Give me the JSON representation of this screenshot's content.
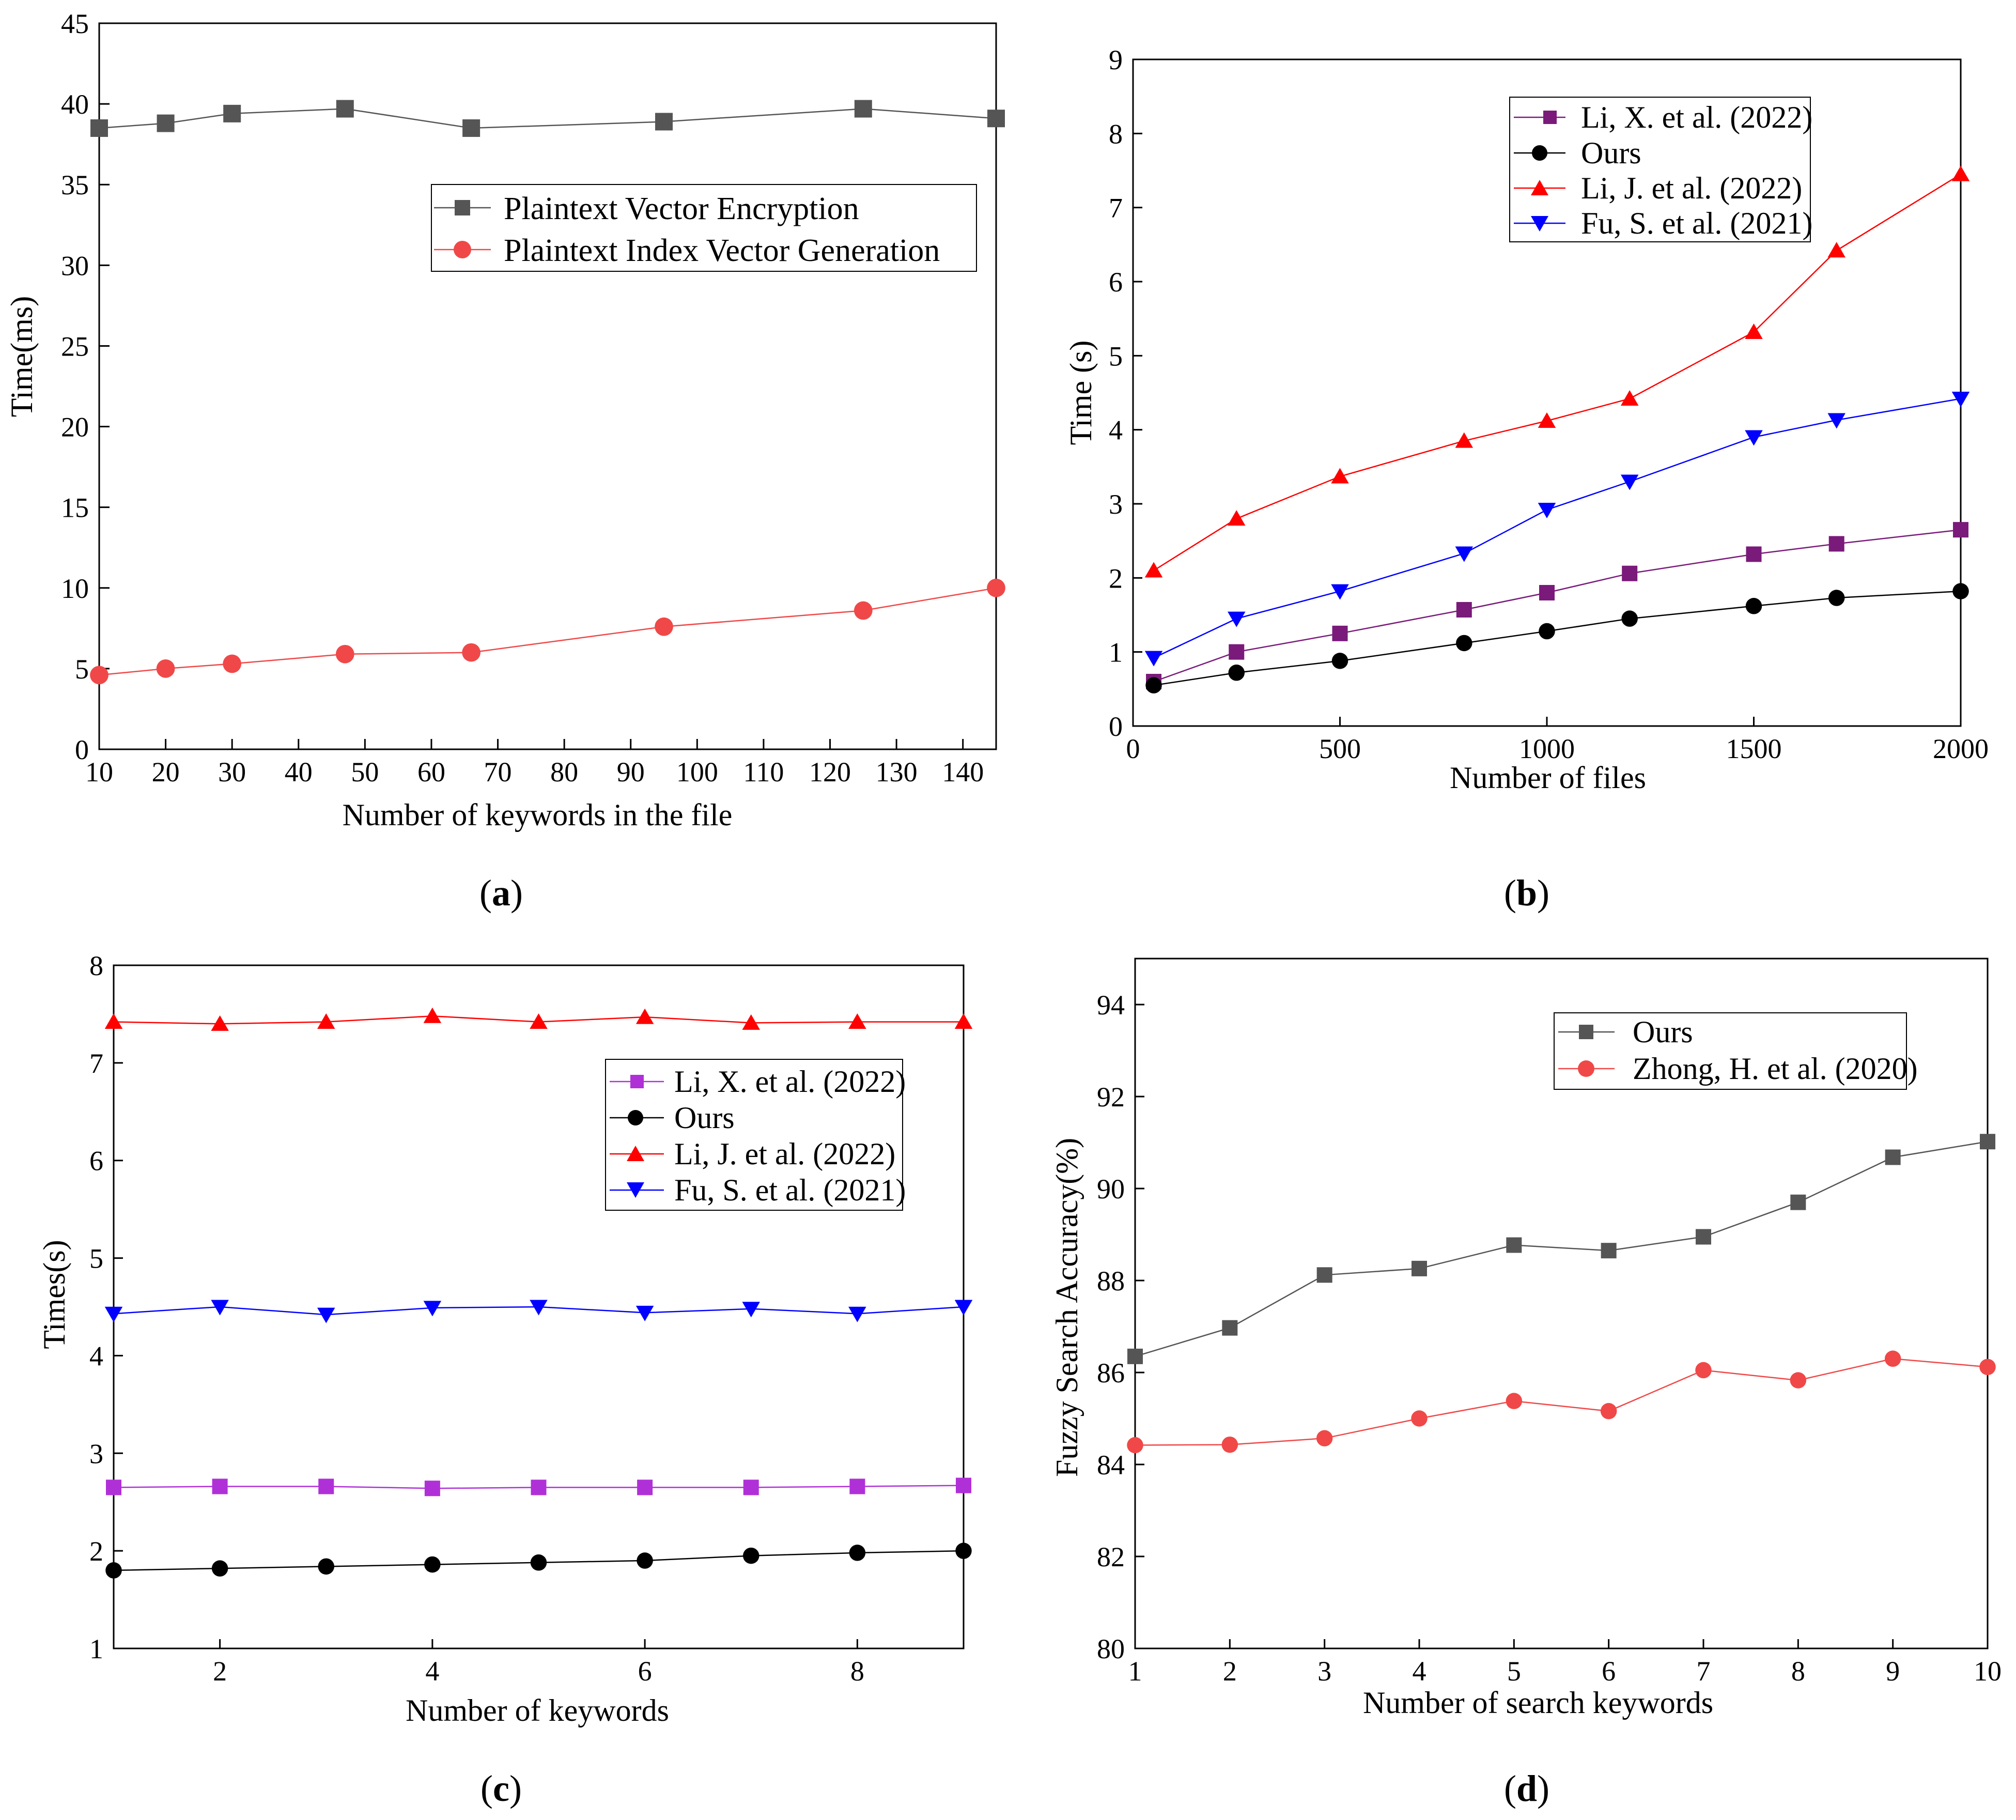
{
  "chart_data": [
    {
      "id": "a",
      "type": "line",
      "caption_letter": "a",
      "xlabel": "Number of keywords in the file",
      "ylabel": "Time(ms)",
      "xlim": [
        10,
        145
      ],
      "ylim": [
        0,
        45
      ],
      "xticks": [
        10,
        20,
        30,
        40,
        50,
        60,
        70,
        80,
        90,
        100,
        110,
        120,
        130,
        140
      ],
      "yticks": [
        0,
        5,
        10,
        15,
        20,
        25,
        30,
        35,
        40,
        45
      ],
      "legend_position": "top-right",
      "series": [
        {
          "name": "Plaintext Vector Encryption",
          "color": "#555555",
          "marker": "square",
          "x": [
            10,
            20,
            30,
            47,
            66,
            95,
            125,
            145
          ],
          "y": [
            38.5,
            38.8,
            39.4,
            39.7,
            38.5,
            38.9,
            39.7,
            39.1
          ]
        },
        {
          "name": "Plaintext Index Vector Generation",
          "color": "#f04848",
          "marker": "circle",
          "x": [
            10,
            20,
            30,
            47,
            66,
            95,
            125,
            145
          ],
          "y": [
            4.6,
            5.0,
            5.3,
            5.9,
            6.0,
            7.6,
            8.6,
            10.0
          ]
        }
      ]
    },
    {
      "id": "b",
      "type": "line",
      "caption_letter": "b",
      "xlabel": "Number of files",
      "ylabel": "Time (s)",
      "xlim": [
        0,
        2000
      ],
      "ylim": [
        0,
        9
      ],
      "xticks": [
        0,
        500,
        1000,
        1500,
        2000
      ],
      "yticks": [
        0,
        1,
        2,
        3,
        4,
        5,
        6,
        7,
        8,
        9
      ],
      "legend_position": "top-left",
      "series": [
        {
          "name": "Li, X. et al. (2022)",
          "color": "#7a1a7a",
          "marker": "square",
          "x": [
            50,
            250,
            500,
            800,
            1000,
            1200,
            1500,
            1700,
            2000
          ],
          "y": [
            0.6,
            1.0,
            1.25,
            1.57,
            1.8,
            2.06,
            2.32,
            2.46,
            2.65
          ]
        },
        {
          "name": "Ours",
          "color": "#000000",
          "marker": "circle",
          "x": [
            50,
            250,
            500,
            800,
            1000,
            1200,
            1500,
            1700,
            2000
          ],
          "y": [
            0.55,
            0.72,
            0.88,
            1.12,
            1.28,
            1.45,
            1.62,
            1.73,
            1.82
          ]
        },
        {
          "name": "Li, J. et al. (2022)",
          "color": "#ff0000",
          "marker": "triangle-up",
          "x": [
            50,
            250,
            500,
            800,
            1000,
            1200,
            1500,
            1700,
            2000
          ],
          "y": [
            2.1,
            2.8,
            3.37,
            3.85,
            4.12,
            4.42,
            5.32,
            6.42,
            7.45
          ]
        },
        {
          "name": "Fu, S. et al. (2021)",
          "color": "#0000ff",
          "marker": "triangle-down",
          "x": [
            50,
            250,
            500,
            800,
            1000,
            1200,
            1500,
            1700,
            2000
          ],
          "y": [
            0.92,
            1.45,
            1.82,
            2.33,
            2.92,
            3.3,
            3.9,
            4.13,
            4.42
          ]
        }
      ]
    },
    {
      "id": "c",
      "type": "line",
      "caption_letter": "c",
      "xlabel": "Number of keywords",
      "ylabel": "Times(s)",
      "xlim": [
        1,
        9
      ],
      "ylim": [
        1,
        8
      ],
      "xticks": [
        2,
        4,
        6,
        8
      ],
      "yticks": [
        1,
        2,
        3,
        4,
        5,
        6,
        7,
        8
      ],
      "legend_position": "right",
      "series": [
        {
          "name": "Li, X. et al. (2022)",
          "color": "#b030d8",
          "marker": "square",
          "x": [
            1,
            2,
            3,
            4,
            5,
            6,
            7,
            8,
            9
          ],
          "y": [
            2.65,
            2.66,
            2.66,
            2.64,
            2.65,
            2.65,
            2.65,
            2.66,
            2.67
          ]
        },
        {
          "name": "Ours",
          "color": "#000000",
          "marker": "circle",
          "x": [
            1,
            2,
            3,
            4,
            5,
            6,
            7,
            8,
            9
          ],
          "y": [
            1.8,
            1.82,
            1.84,
            1.86,
            1.88,
            1.9,
            1.95,
            1.98,
            2.0
          ]
        },
        {
          "name": "Li, J. et al. (2022)",
          "color": "#ff0000",
          "marker": "triangle-up",
          "x": [
            1,
            2,
            3,
            4,
            5,
            6,
            7,
            8,
            9
          ],
          "y": [
            7.42,
            7.4,
            7.42,
            7.48,
            7.42,
            7.47,
            7.41,
            7.42,
            7.42
          ]
        },
        {
          "name": "Fu, S. et al. (2021)",
          "color": "#0000ff",
          "marker": "triangle-down",
          "x": [
            1,
            2,
            3,
            4,
            5,
            6,
            7,
            8,
            9
          ],
          "y": [
            4.43,
            4.5,
            4.42,
            4.49,
            4.5,
            4.44,
            4.48,
            4.43,
            4.5
          ]
        }
      ]
    },
    {
      "id": "d",
      "type": "line",
      "caption_letter": "d",
      "xlabel": "Number of search keywords",
      "ylabel": "Fuzzy Search Accuracy(%)",
      "xlim": [
        1,
        10
      ],
      "ylim": [
        80,
        95
      ],
      "xticks": [
        1,
        2,
        3,
        4,
        5,
        6,
        7,
        8,
        9,
        10
      ],
      "yticks": [
        80,
        82,
        84,
        86,
        88,
        90,
        92,
        94
      ],
      "legend_position": "top-right",
      "series": [
        {
          "name": "Ours",
          "color": "#555555",
          "marker": "square",
          "x": [
            1,
            2,
            3,
            4,
            5,
            6,
            7,
            8,
            9,
            10
          ],
          "y": [
            86.35,
            86.97,
            88.12,
            88.26,
            88.77,
            88.65,
            88.95,
            89.7,
            90.68,
            91.02
          ]
        },
        {
          "name": "Zhong, H. et al. (2020)",
          "color": "#f04848",
          "marker": "circle",
          "x": [
            1,
            2,
            3,
            4,
            5,
            6,
            7,
            8,
            9,
            10
          ],
          "y": [
            84.42,
            84.43,
            84.57,
            85.0,
            85.38,
            85.16,
            86.05,
            85.83,
            86.3,
            86.12
          ]
        }
      ]
    }
  ]
}
